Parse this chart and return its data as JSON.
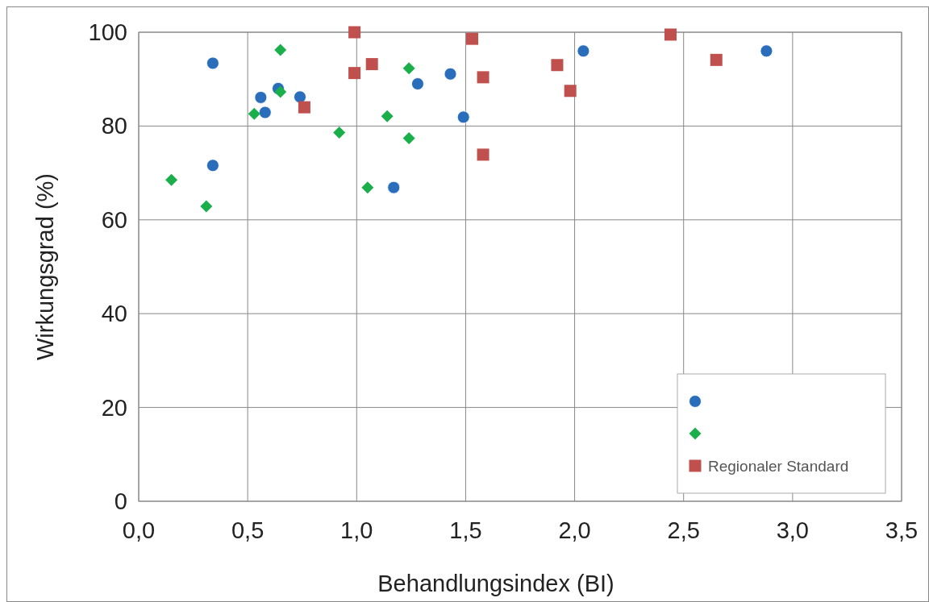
{
  "chart_data": {
    "type": "scatter",
    "xlabel": "Behandlungsindex (BI)",
    "ylabel": "Wirkungsgrad (%)",
    "xlim": [
      0,
      3.5
    ],
    "xticks": [
      {
        "value": 0,
        "label": "0,0"
      },
      {
        "value": 0.5,
        "label": "0,5"
      },
      {
        "value": 1,
        "label": "1,0"
      },
      {
        "value": 1.5,
        "label": "1,5"
      },
      {
        "value": 2,
        "label": "2,0"
      },
      {
        "value": 2.5,
        "label": "2,5"
      },
      {
        "value": 3,
        "label": "3,0"
      },
      {
        "value": 3.5,
        "label": "3,5"
      }
    ],
    "ylim": [
      0,
      100
    ],
    "yticks": [
      0,
      20,
      40,
      60,
      80,
      100
    ],
    "grid": true,
    "legend": "bottom right",
    "series": [
      {
        "color": "#2a6ebb",
        "marker": "circle",
        "x": [
          0.34,
          0.34,
          0.56,
          0.58,
          0.64,
          0.74,
          1.17,
          1.28,
          1.43,
          1.49,
          2.04,
          2.88
        ],
        "values": [
          93.4,
          71.6,
          86.1,
          82.9,
          88,
          86.2,
          66.9,
          89,
          91.1,
          81.9,
          96,
          96
        ]
      },
      {
        "color": "#1aaf4b",
        "marker": "diamond",
        "x": [
          0.15,
          0.31,
          0.53,
          0.65,
          0.65,
          0.92,
          1.05,
          1.14,
          1.24,
          1.24
        ],
        "values": [
          68.5,
          62.9,
          82.6,
          96.2,
          87.3,
          78.6,
          66.9,
          82.1,
          92.3,
          77.4
        ]
      },
      {
        "name": "Regionaler Standard",
        "color": "#c0504d",
        "marker": "square",
        "x": [
          0.99,
          0.99,
          1.07,
          0.76,
          1.53,
          1.58,
          1.58,
          1.92,
          1.98,
          2.44,
          2.65
        ],
        "values": [
          100,
          91.3,
          93.2,
          84,
          98.6,
          90.4,
          73.9,
          93,
          87.5,
          99.5,
          94.1
        ]
      }
    ]
  }
}
